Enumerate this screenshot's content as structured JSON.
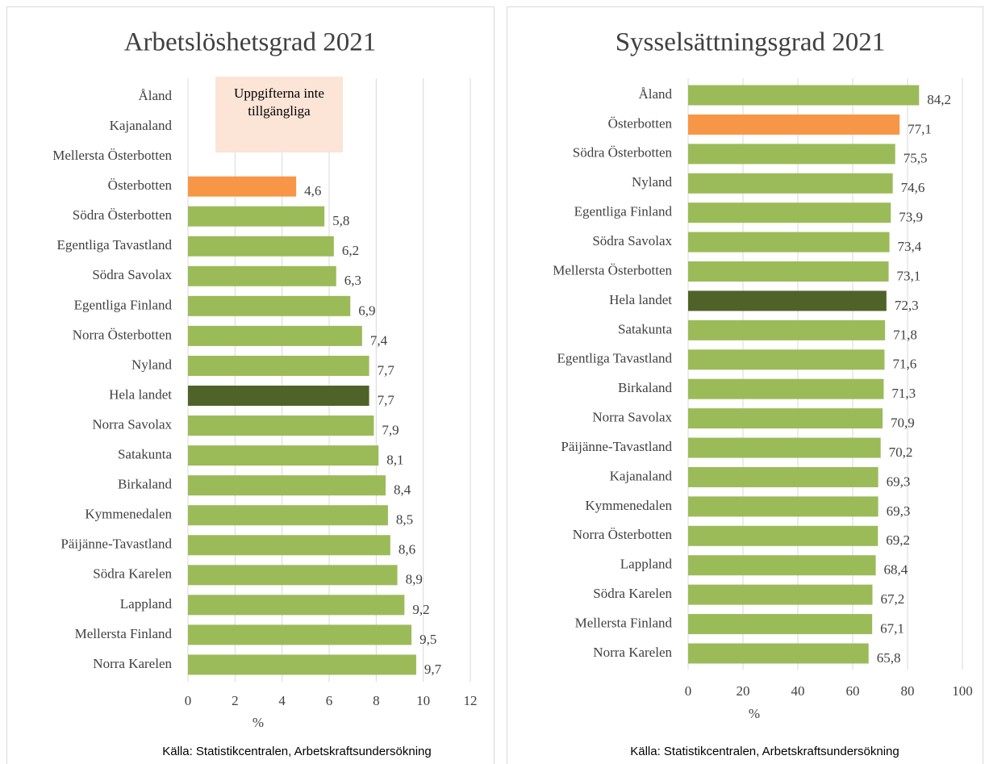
{
  "chart_data": [
    {
      "type": "bar",
      "orientation": "horizontal",
      "title": "Arbetslöshetsgrad 2021",
      "x_label": "%",
      "source": "Källa: Statistikcentralen, Arbetskraftsundersökning",
      "annotation": "Uppgifterna inte tillgängliga",
      "categories": [
        "Åland",
        "Kajanaland",
        "Mellersta Österbotten",
        "Österbotten",
        "Södra Österbotten",
        "Egentliga Tavastland",
        "Södra Savolax",
        "Egentliga Finland",
        "Norra Österbotten",
        "Nyland",
        "Hela landet",
        "Norra Savolax",
        "Satakunta",
        "Birkaland",
        "Kymmenedalen",
        "Päijänne-Tavastland",
        "Södra Karelen",
        "Lappland",
        "Mellersta Finland",
        "Norra Karelen"
      ],
      "values": [
        null,
        null,
        null,
        4.6,
        5.8,
        6.2,
        6.3,
        6.9,
        7.4,
        7.7,
        7.7,
        7.9,
        8.1,
        8.4,
        8.5,
        8.6,
        8.9,
        9.2,
        9.5,
        9.7
      ],
      "value_labels": [
        null,
        null,
        null,
        "4,6",
        "5,8",
        "6,2",
        "6,3",
        "6,9",
        "7,4",
        "7,7",
        "7,7",
        "7,9",
        "8,1",
        "8,4",
        "8,5",
        "8,6",
        "8,9",
        "9,2",
        "9,5",
        "9,7"
      ],
      "colors": [
        "#9bbb59",
        "#9bbb59",
        "#9bbb59",
        "#f79646",
        "#9bbb59",
        "#9bbb59",
        "#9bbb59",
        "#9bbb59",
        "#9bbb59",
        "#9bbb59",
        "#4f6228",
        "#9bbb59",
        "#9bbb59",
        "#9bbb59",
        "#9bbb59",
        "#9bbb59",
        "#9bbb59",
        "#9bbb59",
        "#9bbb59",
        "#9bbb59"
      ],
      "xlim": [
        0,
        12
      ],
      "xticks": [
        0,
        2,
        4,
        6,
        8,
        10,
        12
      ],
      "grid": true
    },
    {
      "type": "bar",
      "orientation": "horizontal",
      "title": "Sysselsättningsgrad 2021",
      "x_label": "%",
      "source": "Källa: Statistikcentralen, Arbetskraftsundersökning",
      "categories": [
        "Åland",
        "Österbotten",
        "Södra Österbotten",
        "Nyland",
        "Egentliga Finland",
        "Södra Savolax",
        "Mellersta Österbotten",
        "Hela landet",
        "Satakunta",
        "Egentliga Tavastland",
        "Birkaland",
        "Norra Savolax",
        "Päijänne-Tavastland",
        "Kajanaland",
        "Kymmenedalen",
        "Norra Österbotten",
        "Lappland",
        "Södra Karelen",
        "Mellersta Finland",
        "Norra Karelen"
      ],
      "values": [
        84.2,
        77.1,
        75.5,
        74.6,
        73.9,
        73.4,
        73.1,
        72.3,
        71.8,
        71.6,
        71.3,
        70.9,
        70.2,
        69.3,
        69.3,
        69.2,
        68.4,
        67.2,
        67.1,
        65.8
      ],
      "value_labels": [
        "84,2",
        "77,1",
        "75,5",
        "74,6",
        "73,9",
        "73,4",
        "73,1",
        "72,3",
        "71,8",
        "71,6",
        "71,3",
        "70,9",
        "70,2",
        "69,3",
        "69,3",
        "69,2",
        "68,4",
        "67,2",
        "67,1",
        "65,8"
      ],
      "colors": [
        "#9bbb59",
        "#f79646",
        "#9bbb59",
        "#9bbb59",
        "#9bbb59",
        "#9bbb59",
        "#9bbb59",
        "#4f6228",
        "#9bbb59",
        "#9bbb59",
        "#9bbb59",
        "#9bbb59",
        "#9bbb59",
        "#9bbb59",
        "#9bbb59",
        "#9bbb59",
        "#9bbb59",
        "#9bbb59",
        "#9bbb59",
        "#9bbb59"
      ],
      "xlim": [
        0,
        100
      ],
      "xticks": [
        0,
        20,
        40,
        60,
        80,
        100
      ],
      "grid": true
    }
  ]
}
